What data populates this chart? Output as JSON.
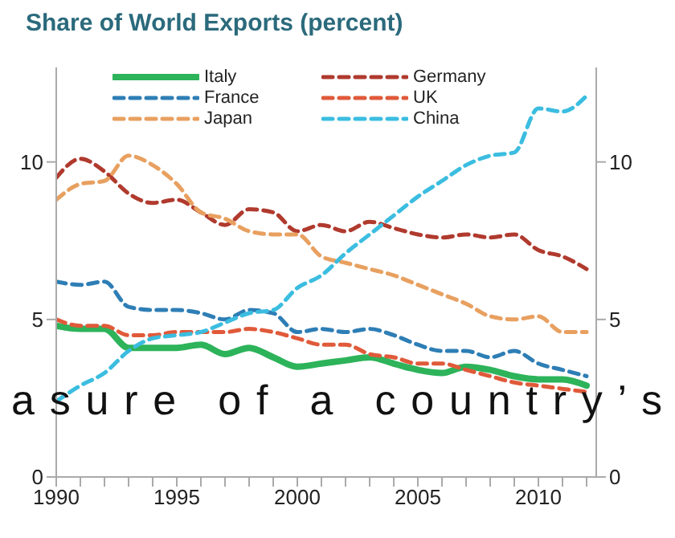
{
  "chart_data": {
    "type": "line",
    "title": "Share of World Exports (percent)",
    "annotations": [
      "asure of a country’s"
    ],
    "x": [
      1990,
      1991,
      1992,
      1993,
      1994,
      1995,
      1996,
      1997,
      1998,
      1999,
      2000,
      2001,
      2002,
      2003,
      2004,
      2005,
      2006,
      2007,
      2008,
      2009,
      2010,
      2011,
      2012
    ],
    "series": [
      {
        "name": "Italy",
        "color": "#2db35a",
        "line_style": "solid",
        "values": [
          4.8,
          4.7,
          4.7,
          4.1,
          4.1,
          4.1,
          4.2,
          3.9,
          4.1,
          3.8,
          3.5,
          3.6,
          3.7,
          3.8,
          3.6,
          3.4,
          3.3,
          3.5,
          3.4,
          3.2,
          3.1,
          3.1,
          2.9
        ]
      },
      {
        "name": "Germany",
        "color": "#b03a2e",
        "line_style": "dashed",
        "values": [
          9.5,
          10.1,
          9.7,
          9.0,
          8.7,
          8.8,
          8.4,
          8.0,
          8.5,
          8.4,
          7.8,
          8.0,
          7.8,
          8.1,
          7.9,
          7.7,
          7.6,
          7.7,
          7.6,
          7.7,
          7.2,
          7.0,
          6.6
        ]
      },
      {
        "name": "France",
        "color": "#2e7eb5",
        "line_style": "dashed",
        "values": [
          6.2,
          6.1,
          6.2,
          5.4,
          5.3,
          5.3,
          5.2,
          5.0,
          5.3,
          5.2,
          4.6,
          4.7,
          4.6,
          4.7,
          4.5,
          4.2,
          4.0,
          4.0,
          3.8,
          4.0,
          3.6,
          3.4,
          3.2
        ]
      },
      {
        "name": "UK",
        "color": "#e05a3a",
        "line_style": "dashed",
        "values": [
          5.0,
          4.8,
          4.8,
          4.5,
          4.5,
          4.6,
          4.6,
          4.6,
          4.7,
          4.6,
          4.4,
          4.2,
          4.2,
          3.9,
          3.8,
          3.6,
          3.6,
          3.4,
          3.2,
          3.0,
          2.9,
          2.8,
          2.7
        ]
      },
      {
        "name": "Japan",
        "color": "#e8a060",
        "line_style": "dashed",
        "values": [
          8.8,
          9.3,
          9.4,
          10.2,
          9.9,
          9.3,
          8.4,
          8.2,
          7.8,
          7.7,
          7.7,
          7.0,
          6.8,
          6.6,
          6.4,
          6.1,
          5.8,
          5.5,
          5.1,
          5.0,
          5.1,
          4.6,
          4.6
        ]
      },
      {
        "name": "China",
        "color": "#3bbde0",
        "line_style": "dashed",
        "values": [
          2.4,
          2.9,
          3.3,
          4.0,
          4.4,
          4.5,
          4.6,
          4.9,
          5.2,
          5.3,
          6.0,
          6.4,
          7.1,
          7.7,
          8.3,
          8.9,
          9.4,
          9.9,
          10.2,
          10.3,
          11.7,
          11.6,
          12.1
        ]
      }
    ],
    "xlim": [
      1990,
      2012.4
    ],
    "xticks": [
      1990,
      {
        "value": 1991,
        "label": null
      },
      {
        "value": 1992,
        "label": null
      },
      {
        "value": 1993,
        "label": null
      },
      {
        "value": 1994,
        "label": null
      },
      1995,
      {
        "value": 1996,
        "label": null
      },
      {
        "value": 1997,
        "label": null
      },
      {
        "value": 1998,
        "label": null
      },
      {
        "value": 1999,
        "label": null
      },
      2000,
      {
        "value": 2001,
        "label": null
      },
      {
        "value": 2002,
        "label": null
      },
      {
        "value": 2003,
        "label": null
      },
      {
        "value": 2004,
        "label": null
      },
      2005,
      {
        "value": 2006,
        "label": null
      },
      {
        "value": 2007,
        "label": null
      },
      {
        "value": 2008,
        "label": null
      },
      {
        "value": 2009,
        "label": null
      },
      2010,
      {
        "value": 2011,
        "label": null
      },
      {
        "value": 2012,
        "label": null
      }
    ],
    "ylim": [
      0,
      13
    ],
    "yticks": [
      0,
      5,
      10
    ],
    "y2lim": [
      0,
      13
    ],
    "y2ticks": [
      0,
      5,
      10
    ],
    "grid": false,
    "legend": "top",
    "marker": "none"
  }
}
